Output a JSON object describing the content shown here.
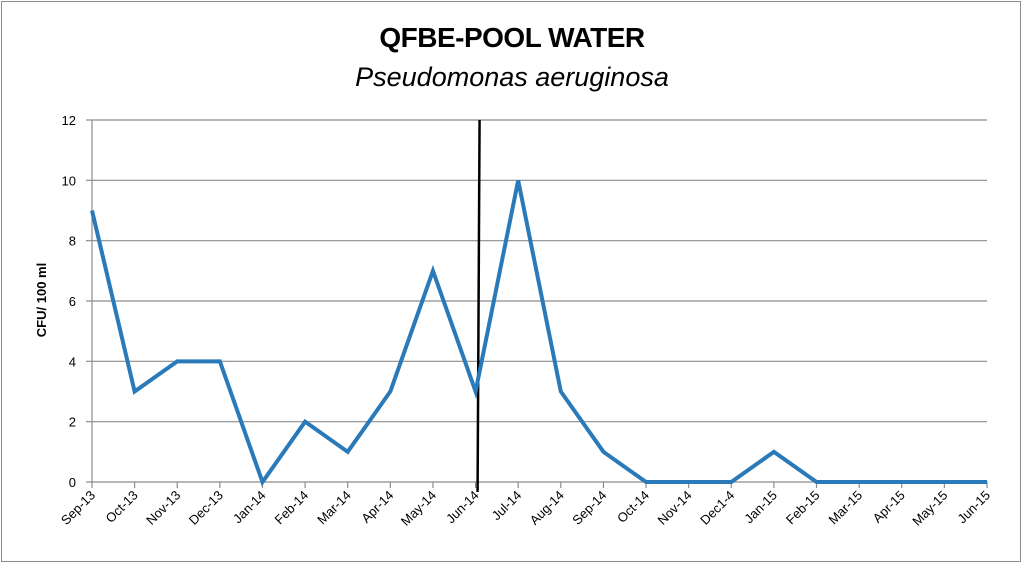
{
  "chart_data": {
    "type": "line",
    "title": "QFBE-POOL WATER",
    "subtitle": "Pseudomonas aeruginosa",
    "xlabel": "",
    "ylabel": "CFU/ 100 ml",
    "ylim": [
      0,
      12
    ],
    "yticks": [
      0,
      2,
      4,
      6,
      8,
      10,
      12
    ],
    "grid": true,
    "legend": "none",
    "categories": [
      "Sep-13",
      "Oct-13",
      "Nov-13",
      "Dec-13",
      "Jan-14",
      "Feb-14",
      "Mar-14",
      "Apr-14",
      "May-14",
      "Jun-14",
      "Jul-14",
      "Aug-14",
      "Sep-14",
      "Oct-14",
      "Nov-14",
      "Dec1-4",
      "Jan-15",
      "Feb-15",
      "Mar-15",
      "Apr-15",
      "May-15",
      "Jun-15"
    ],
    "series": [
      {
        "values": [
          9,
          3,
          4,
          4,
          0,
          2,
          1,
          3,
          7,
          3,
          10,
          3,
          1,
          0,
          0,
          0,
          1,
          0,
          0,
          0,
          0,
          0
        ],
        "color": "#2a7ab9"
      }
    ],
    "marker_line": {
      "between": [
        "Jun-14",
        "Jul-14"
      ],
      "color": "#000000"
    }
  }
}
